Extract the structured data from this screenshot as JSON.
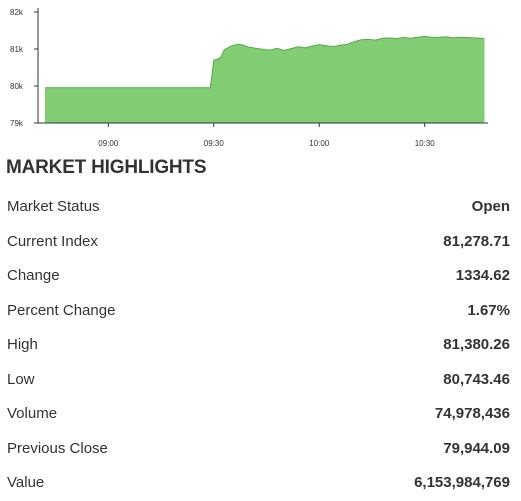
{
  "chart_data": {
    "type": "area",
    "y_tick_labels": [
      "82k",
      "81k",
      "80k",
      "79k"
    ],
    "y_ticks": [
      82000,
      81000,
      80000,
      79000
    ],
    "ylim": [
      79000,
      82000
    ],
    "x_tick_labels": [
      "09:00",
      "09:30",
      "10:00",
      "10:30"
    ],
    "x_ticks": [
      "09:00",
      "09:30",
      "10:00",
      "10:30"
    ],
    "xlim": [
      "08:40",
      "10:48"
    ],
    "fill_color": "#82cc74",
    "line_color": "#55aa48",
    "grid": false,
    "series": [
      {
        "x": [
          "08:40",
          "09:00",
          "09:20",
          "09:29",
          "09:30",
          "09:31",
          "09:32",
          "09:33",
          "09:35",
          "09:37",
          "09:38",
          "09:40",
          "09:42",
          "09:44",
          "09:46",
          "09:48",
          "09:50",
          "09:52",
          "09:54",
          "09:56",
          "09:58",
          "10:00",
          "10:02",
          "10:04",
          "10:06",
          "10:08",
          "10:10",
          "10:12",
          "10:14",
          "10:16",
          "10:18",
          "10:20",
          "10:22",
          "10:24",
          "10:26",
          "10:28",
          "10:30",
          "10:32",
          "10:34",
          "10:36",
          "10:38",
          "10:40",
          "10:42",
          "10:44",
          "10:46",
          "10:47"
        ],
        "y": [
          79950,
          79950,
          79950,
          79950,
          80700,
          80720,
          80780,
          80980,
          81080,
          81130,
          81110,
          81050,
          81020,
          80990,
          80970,
          81020,
          80960,
          81010,
          81060,
          81030,
          81080,
          81120,
          81090,
          81060,
          81100,
          81130,
          81200,
          81250,
          81260,
          81240,
          81290,
          81300,
          81280,
          81310,
          81290,
          81320,
          81340,
          81320,
          81310,
          81330,
          81300,
          81320,
          81310,
          81300,
          81290,
          81278
        ]
      }
    ]
  },
  "highlights": {
    "title": "MARKET HIGHLIGHTS",
    "rows": [
      {
        "label": "Market Status",
        "value": "Open"
      },
      {
        "label": "Current Index",
        "value": "81,278.71"
      },
      {
        "label": "Change",
        "value": "1334.62"
      },
      {
        "label": "Percent Change",
        "value": "1.67%"
      },
      {
        "label": "High",
        "value": "81,380.26"
      },
      {
        "label": "Low",
        "value": "80,743.46"
      },
      {
        "label": "Volume",
        "value": "74,978,436"
      },
      {
        "label": "Previous Close",
        "value": "79,944.09"
      },
      {
        "label": "Value",
        "value": "6,153,984,769"
      }
    ]
  }
}
